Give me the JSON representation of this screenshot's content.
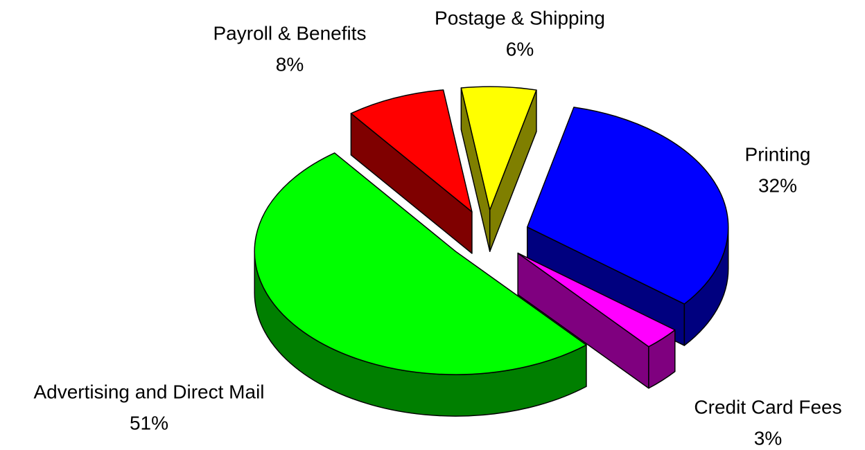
{
  "chart_data": {
    "type": "pie",
    "categories": [
      "Payroll & Benefits",
      "Postage & Shipping",
      "Printing",
      "Credit Card Fees",
      "Advertising and Direct Mail"
    ],
    "values": [
      8,
      6,
      32,
      3,
      51
    ],
    "value_labels": [
      "8%",
      "6%",
      "32%",
      "3%",
      "51%"
    ],
    "colors": [
      "#ff0000",
      "#ffff00",
      "#0000ff",
      "#ff00ff",
      "#00ff00"
    ],
    "exploded": true,
    "three_d": true
  }
}
